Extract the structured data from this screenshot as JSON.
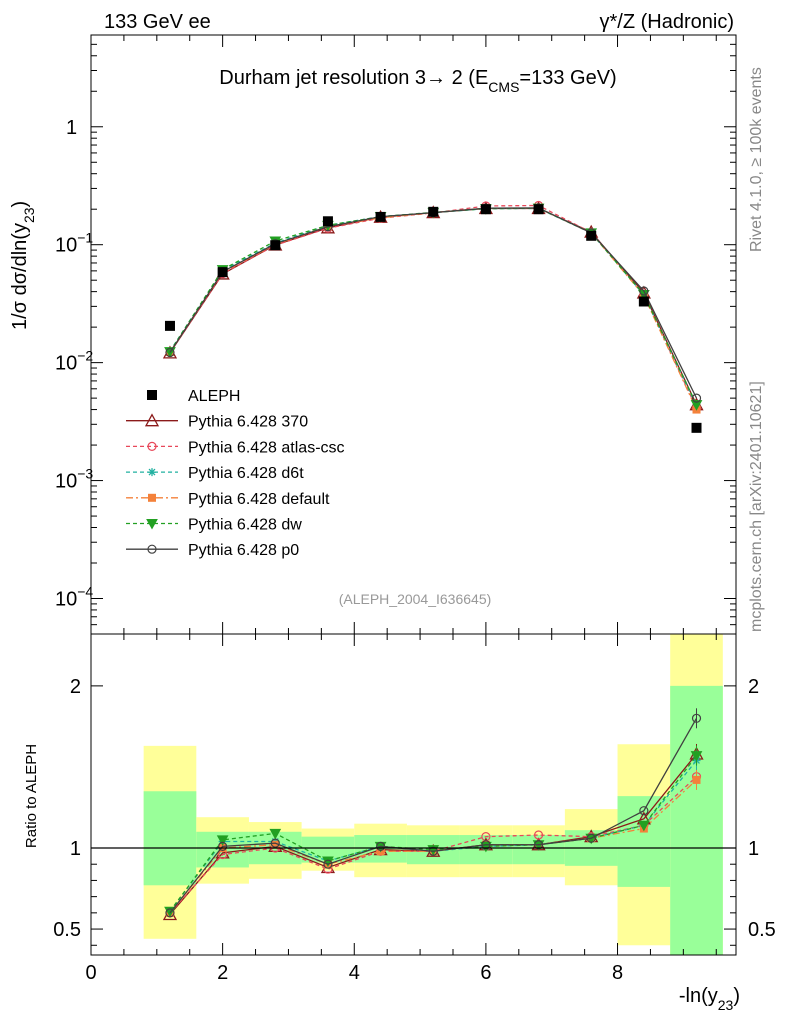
{
  "header": {
    "left": "133 GeV ee",
    "right": "γ*/Z (Hadronic)"
  },
  "side_texts": {
    "rivet": "Rivet 4.1.0, ≥ 100k events",
    "mcplots": "mcplots.cern.ch [arXiv:2401.10621]"
  },
  "chart_data": [
    {
      "panel": "main",
      "type": "line",
      "title": "Durham jet resolution 3→ 2 (E",
      "title_sub": "CMS",
      "title_tail": "=133 GeV)",
      "ylabel": "1/σ  dσ/dln(y",
      "ylabel_sub": "23",
      "ylabel_tail": ")",
      "yscale": "log",
      "xlim": [
        0,
        9.8
      ],
      "ylim": [
        5e-05,
        6
      ],
      "ytick_labels": [
        {
          "value": 0.0001,
          "base": "10",
          "exp": "−4"
        },
        {
          "value": 0.001,
          "base": "10",
          "exp": "−3"
        },
        {
          "value": 0.01,
          "base": "10",
          "exp": "−2"
        },
        {
          "value": 0.1,
          "base": "10",
          "exp": "−1"
        },
        {
          "value": 1,
          "base": "1",
          "exp": ""
        }
      ],
      "watermark": "(ALEPH_2004_I636645)",
      "legend_position": "lower-left",
      "x": [
        1.2,
        2.0,
        2.8,
        3.6,
        4.4,
        5.2,
        6.0,
        6.8,
        7.6,
        8.4,
        9.2
      ],
      "data": {
        "name": "ALEPH",
        "values": [
          0.0205,
          0.0585,
          0.099,
          0.158,
          0.172,
          0.19,
          0.2,
          0.2,
          0.119,
          0.033,
          0.0028
        ]
      },
      "series": [
        {
          "name": "Pythia 6.428 370",
          "color": "#8B1A1A",
          "dash": "",
          "marker": "triangle-open",
          "values": [
            0.0121,
            0.0565,
            0.0995,
            0.139,
            0.171,
            0.187,
            0.203,
            0.203,
            0.128,
            0.039,
            0.0044
          ]
        },
        {
          "name": "Pythia 6.428 atlas-csc",
          "color": "#E8485A",
          "dash": "4,3",
          "marker": "circle-open",
          "values": [
            0.0122,
            0.057,
            0.099,
            0.138,
            0.168,
            0.186,
            0.213,
            0.215,
            0.127,
            0.0375,
            0.0041
          ]
        },
        {
          "name": "Pythia 6.428 d6t",
          "color": "#20B0A0",
          "dash": "4,3",
          "marker": "star",
          "values": [
            0.0125,
            0.0605,
            0.103,
            0.146,
            0.173,
            0.187,
            0.202,
            0.203,
            0.126,
            0.0375,
            0.0043
          ]
        },
        {
          "name": "Pythia 6.428 default",
          "color": "#F4813A",
          "dash": "7,3,2,3",
          "marker": "square-filled",
          "values": [
            0.0123,
            0.0585,
            0.1005,
            0.143,
            0.169,
            0.187,
            0.204,
            0.204,
            0.126,
            0.037,
            0.004
          ]
        },
        {
          "name": "Pythia 6.428 dw",
          "color": "#22A022",
          "dash": "4,3",
          "marker": "triangle-down-filled",
          "values": [
            0.0124,
            0.0615,
            0.1075,
            0.146,
            0.173,
            0.188,
            0.202,
            0.204,
            0.126,
            0.0378,
            0.0044
          ]
        },
        {
          "name": "Pythia 6.428 p0",
          "color": "#404040",
          "dash": "",
          "marker": "circle-open",
          "values": [
            0.0122,
            0.059,
            0.102,
            0.142,
            0.173,
            0.187,
            0.204,
            0.205,
            0.126,
            0.0405,
            0.005
          ]
        }
      ]
    },
    {
      "panel": "ratio",
      "type": "line",
      "ylabel": "Ratio to ALEPH",
      "xlabel": "-ln(y",
      "xlabel_sub": "23",
      "xlabel_tail": ")",
      "xlim": [
        0,
        9.8
      ],
      "ylim": [
        0.34,
        2.32
      ],
      "xticks": [
        0,
        2,
        4,
        6,
        8
      ],
      "yticks": [
        0.5,
        1,
        2
      ],
      "bins": [
        {
          "lo": 0.8,
          "hi": 1.6,
          "green": [
            0.77,
            1.35
          ],
          "yellow": [
            0.44,
            1.63
          ]
        },
        {
          "lo": 1.6,
          "hi": 2.4,
          "green": [
            0.88,
            1.1
          ],
          "yellow": [
            0.78,
            1.19
          ]
        },
        {
          "lo": 2.4,
          "hi": 3.2,
          "green": [
            0.9,
            1.1
          ],
          "yellow": [
            0.81,
            1.16
          ]
        },
        {
          "lo": 3.2,
          "hi": 4.0,
          "green": [
            0.91,
            1.07
          ],
          "yellow": [
            0.86,
            1.12
          ]
        },
        {
          "lo": 4.0,
          "hi": 4.8,
          "green": [
            0.91,
            1.08
          ],
          "yellow": [
            0.82,
            1.15
          ]
        },
        {
          "lo": 4.8,
          "hi": 5.6,
          "green": [
            0.9,
            1.08
          ],
          "yellow": [
            0.82,
            1.14
          ]
        },
        {
          "lo": 5.6,
          "hi": 6.4,
          "green": [
            0.9,
            1.08
          ],
          "yellow": [
            0.82,
            1.14
          ]
        },
        {
          "lo": 6.4,
          "hi": 7.2,
          "green": [
            0.9,
            1.08
          ],
          "yellow": [
            0.82,
            1.14
          ]
        },
        {
          "lo": 7.2,
          "hi": 8.0,
          "green": [
            0.89,
            1.11
          ],
          "yellow": [
            0.77,
            1.24
          ]
        },
        {
          "lo": 8.0,
          "hi": 8.8,
          "green": [
            0.76,
            1.32
          ],
          "yellow": [
            0.4,
            1.64
          ]
        },
        {
          "lo": 8.8,
          "hi": 9.6,
          "green": [
            0.34,
            2.0
          ],
          "yellow": [
            0.34,
            2.32
          ]
        }
      ],
      "x": [
        1.2,
        2.0,
        2.8,
        3.6,
        4.4,
        5.2,
        6.0,
        6.8,
        7.6,
        8.4,
        9.2
      ],
      "series": [
        {
          "name": "Pythia 6.428 370",
          "values": [
            0.59,
            0.97,
            1.01,
            0.88,
            0.99,
            0.98,
            1.02,
            1.02,
            1.07,
            1.18,
            1.58
          ]
        },
        {
          "name": "Pythia 6.428 atlas-csc",
          "values": [
            0.6,
            0.96,
            1.0,
            0.87,
            0.98,
            0.98,
            1.07,
            1.08,
            1.07,
            1.14,
            1.44
          ]
        },
        {
          "name": "Pythia 6.428 d6t",
          "values": [
            0.61,
            1.04,
            1.04,
            0.92,
            1.01,
            0.98,
            1.01,
            1.02,
            1.06,
            1.14,
            1.54
          ]
        },
        {
          "name": "Pythia 6.428 default",
          "values": [
            0.6,
            1.0,
            1.02,
            0.9,
            0.98,
            0.98,
            1.02,
            1.02,
            1.06,
            1.12,
            1.42
          ]
        },
        {
          "name": "Pythia 6.428 dw",
          "values": [
            0.61,
            1.05,
            1.09,
            0.92,
            1.01,
            0.99,
            1.01,
            1.02,
            1.06,
            1.14,
            1.57
          ]
        },
        {
          "name": "Pythia 6.428 p0",
          "values": [
            0.6,
            1.01,
            1.03,
            0.9,
            1.01,
            0.98,
            1.02,
            1.02,
            1.06,
            1.23,
            1.8
          ]
        }
      ],
      "reference": 1
    }
  ]
}
